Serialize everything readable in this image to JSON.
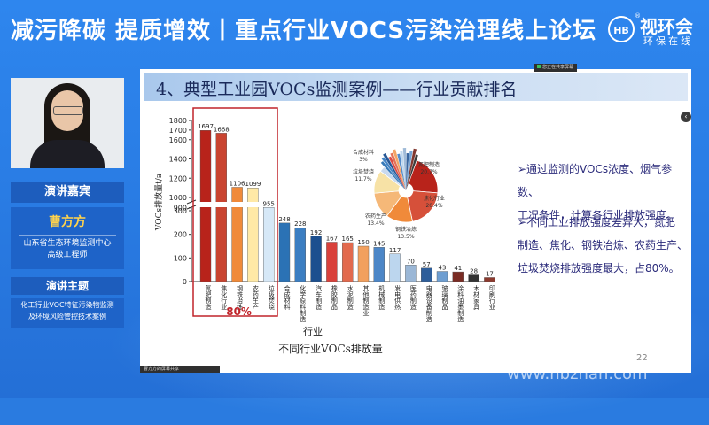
{
  "banner": {
    "title": "减污降碳 提质增效丨重点行业VOCS污染治理线上论坛",
    "logo_name": "视环会",
    "logo_sub": "环保在线",
    "logo_mark": "HB",
    "logo_reg": "®"
  },
  "speaker": {
    "label": "演讲嘉宾",
    "name": "曹方方",
    "org_line1": "山东省生态环境监测中心",
    "org_line2": "高级工程师",
    "topic_label": "演讲主题",
    "topic_line1": "化工行业VOC特征污染物监测",
    "topic_line2": "及环境风险管控技术案例"
  },
  "share_notice": "您正在共享屏幕",
  "footer_bar": "曹方方的屏幕共享",
  "slide": {
    "title": "4、典型工业园VOCs监测案例——行业贡献排名",
    "bullet1_a": "➢通过监测的VOCs浓度、烟气参数、",
    "bullet1_b": "工况条件，计算各行业排放强度。",
    "bullet2_a": "➢不同工业排放强度差异大，氮肥",
    "bullet2_b": "制造、焦化、钢铁冶炼、农药生产、",
    "bullet2_c": "垃圾焚烧排放强度最大，占80%。",
    "page_number": "22",
    "caption": "不同行业VOCs排放量",
    "highlight_label": "80%"
  },
  "watermark": "www.hbzhan.com",
  "chart_data": {
    "type": "bar",
    "ylabel": "VOCs排放量t/a",
    "xlabel": "行业",
    "y_broken_axis": true,
    "yticks_lower": [
      0,
      100,
      200,
      300,
      400,
      500,
      600,
      700,
      800,
      900
    ],
    "yticks_upper": [
      1000,
      1200,
      1400,
      1600,
      1700,
      1800
    ],
    "categories": [
      "氮肥制造",
      "焦化行业",
      "钢铁冶炼",
      "农药生产",
      "垃圾焚烧",
      "合成材料",
      "化学原料制造",
      "汽车制造",
      "橡胶制品",
      "水泥制造",
      "其他制造业",
      "机械制造",
      "发电供热",
      "医药制造",
      "电器设备制造",
      "玻璃制品",
      "涂料油墨制造",
      "木材家具",
      "印刷行业"
    ],
    "values": [
      1697,
      1668,
      1106,
      1099,
      955,
      248,
      228,
      192,
      167,
      165,
      150,
      145,
      117,
      70,
      57,
      43,
      41,
      28,
      17
    ],
    "bar_colors": [
      "#b8231b",
      "#c94430",
      "#f08a3a",
      "#ffe9a6",
      "#d6e8f7",
      "#2b72b5",
      "#3b7ec2",
      "#1c4f8f",
      "#d9413b",
      "#e26a4e",
      "#f2a05e",
      "#4c86c7",
      "#bcd6ee",
      "#9bb7d6",
      "#2e5e9a",
      "#6e9ed1",
      "#7a2c24",
      "#333333",
      "#8c3a2e"
    ],
    "highlight": {
      "label": "80%",
      "color": "#c0242a"
    },
    "pie": {
      "type": "pie",
      "labels": [
        "氮肥制造",
        "焦化行业",
        "钢铁冶炼",
        "农药生产",
        "垃圾焚烧",
        "合成材料"
      ],
      "values": [
        20.7,
        20.4,
        13.5,
        13.4,
        11.7,
        3
      ],
      "value_labels": [
        "20.7%",
        "20.4%",
        "13.5%",
        "13.4%",
        "11.7%",
        "3%"
      ],
      "colors": [
        "#b8231b",
        "#d6503a",
        "#f08a3a",
        "#f5b878",
        "#f7e2a6",
        "#c9d9ee"
      ]
    }
  }
}
